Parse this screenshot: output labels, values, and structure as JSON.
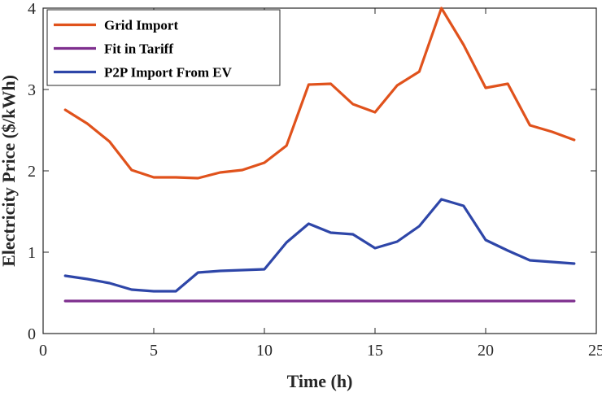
{
  "chart_data": {
    "type": "line",
    "xlabel": "Time (h)",
    "ylabel": "Electricity Price ($/kWh)",
    "xlim": [
      0,
      25
    ],
    "ylim": [
      0,
      4
    ],
    "xticks": [
      0,
      5,
      10,
      15,
      20,
      25
    ],
    "yticks": [
      0,
      1,
      2,
      3,
      4
    ],
    "grid": false,
    "legend_position": "top-left",
    "x": [
      1,
      2,
      3,
      4,
      5,
      6,
      7,
      8,
      9,
      10,
      11,
      12,
      13,
      14,
      15,
      16,
      17,
      18,
      19,
      20,
      21,
      22,
      23,
      24
    ],
    "series": [
      {
        "name": "Grid Import",
        "color": "#E0521C",
        "values": [
          2.75,
          2.58,
          2.36,
          2.01,
          1.92,
          1.92,
          1.91,
          1.98,
          2.01,
          2.1,
          2.31,
          3.06,
          3.07,
          2.82,
          2.72,
          3.05,
          3.22,
          4.0,
          3.55,
          3.02,
          3.07,
          2.56,
          2.48,
          2.38
        ]
      },
      {
        "name": "Fit in Tariff",
        "color": "#7E2F8E",
        "values": [
          0.4,
          0.4,
          0.4,
          0.4,
          0.4,
          0.4,
          0.4,
          0.4,
          0.4,
          0.4,
          0.4,
          0.4,
          0.4,
          0.4,
          0.4,
          0.4,
          0.4,
          0.4,
          0.4,
          0.4,
          0.4,
          0.4,
          0.4,
          0.4
        ]
      },
      {
        "name": "P2P Import From EV",
        "color": "#2E46A8",
        "values": [
          0.71,
          0.67,
          0.62,
          0.54,
          0.52,
          0.52,
          0.75,
          0.77,
          0.78,
          0.79,
          1.12,
          1.35,
          1.24,
          1.22,
          1.05,
          1.13,
          1.32,
          1.65,
          1.57,
          1.15,
          1.02,
          0.9,
          0.88,
          0.86
        ]
      }
    ]
  }
}
